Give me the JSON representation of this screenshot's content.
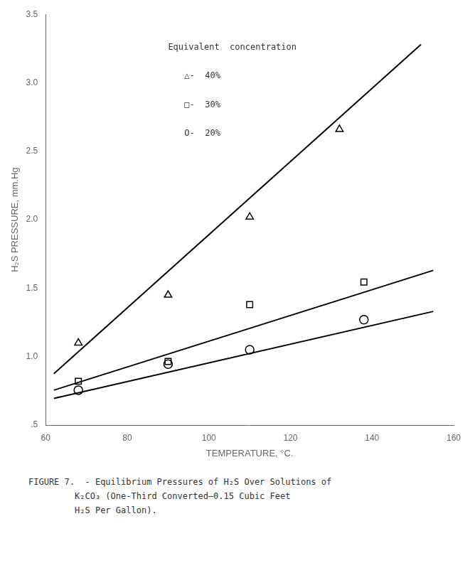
{
  "chart_data": {
    "type": "scatter",
    "xlabel": "TEMPERATURE, °C.",
    "ylabel": "H₂S PRESSURE, mm.Hg",
    "xlim": [
      60,
      160
    ],
    "ylim": [
      0.5,
      3.5
    ],
    "xticks": [
      60,
      80,
      100,
      120,
      140,
      160
    ],
    "yticks": [
      {
        "value": 0.5,
        "label": ".5"
      },
      {
        "value": 1.0,
        "label": "1.0"
      },
      1.5,
      {
        "value": 2.0,
        "label": "2.0"
      },
      2.5,
      {
        "value": 3.0,
        "label": "3.0"
      },
      3.5
    ],
    "grid": false,
    "annotations": [
      "Equivalent  concentration"
    ],
    "series": [
      {
        "name": "△-  40%",
        "marker": "triangle",
        "color": "#000000",
        "x": [
          68,
          90,
          110,
          132
        ],
        "values": [
          1.1,
          1.45,
          2.02,
          2.66
        ],
        "line": {
          "x": [
            62,
            152
          ],
          "values": [
            0.875,
            3.28
          ]
        }
      },
      {
        "name": "□-  30%",
        "marker": "square",
        "color": "#000000",
        "x": [
          68,
          90,
          110,
          138
        ],
        "values": [
          0.82,
          0.965,
          1.38,
          1.545
        ],
        "line": {
          "x": [
            62,
            155
          ],
          "values": [
            0.755,
            1.63
          ]
        }
      },
      {
        "name": "O-  20%",
        "marker": "circle",
        "color": "#000000",
        "x": [
          68,
          90,
          110,
          138
        ],
        "values": [
          0.755,
          0.945,
          1.05,
          1.27
        ],
        "line": {
          "x": [
            62,
            155
          ],
          "values": [
            0.695,
            1.33
          ]
        }
      }
    ],
    "caption": [
      "FIGURE 7.  - Equilibrium Pressures of H₂S Over Solutions of",
      "         K₂CO₃ (One-Third Converted–0.15 Cubic Feet",
      "         H₂S Per Gallon)."
    ]
  }
}
